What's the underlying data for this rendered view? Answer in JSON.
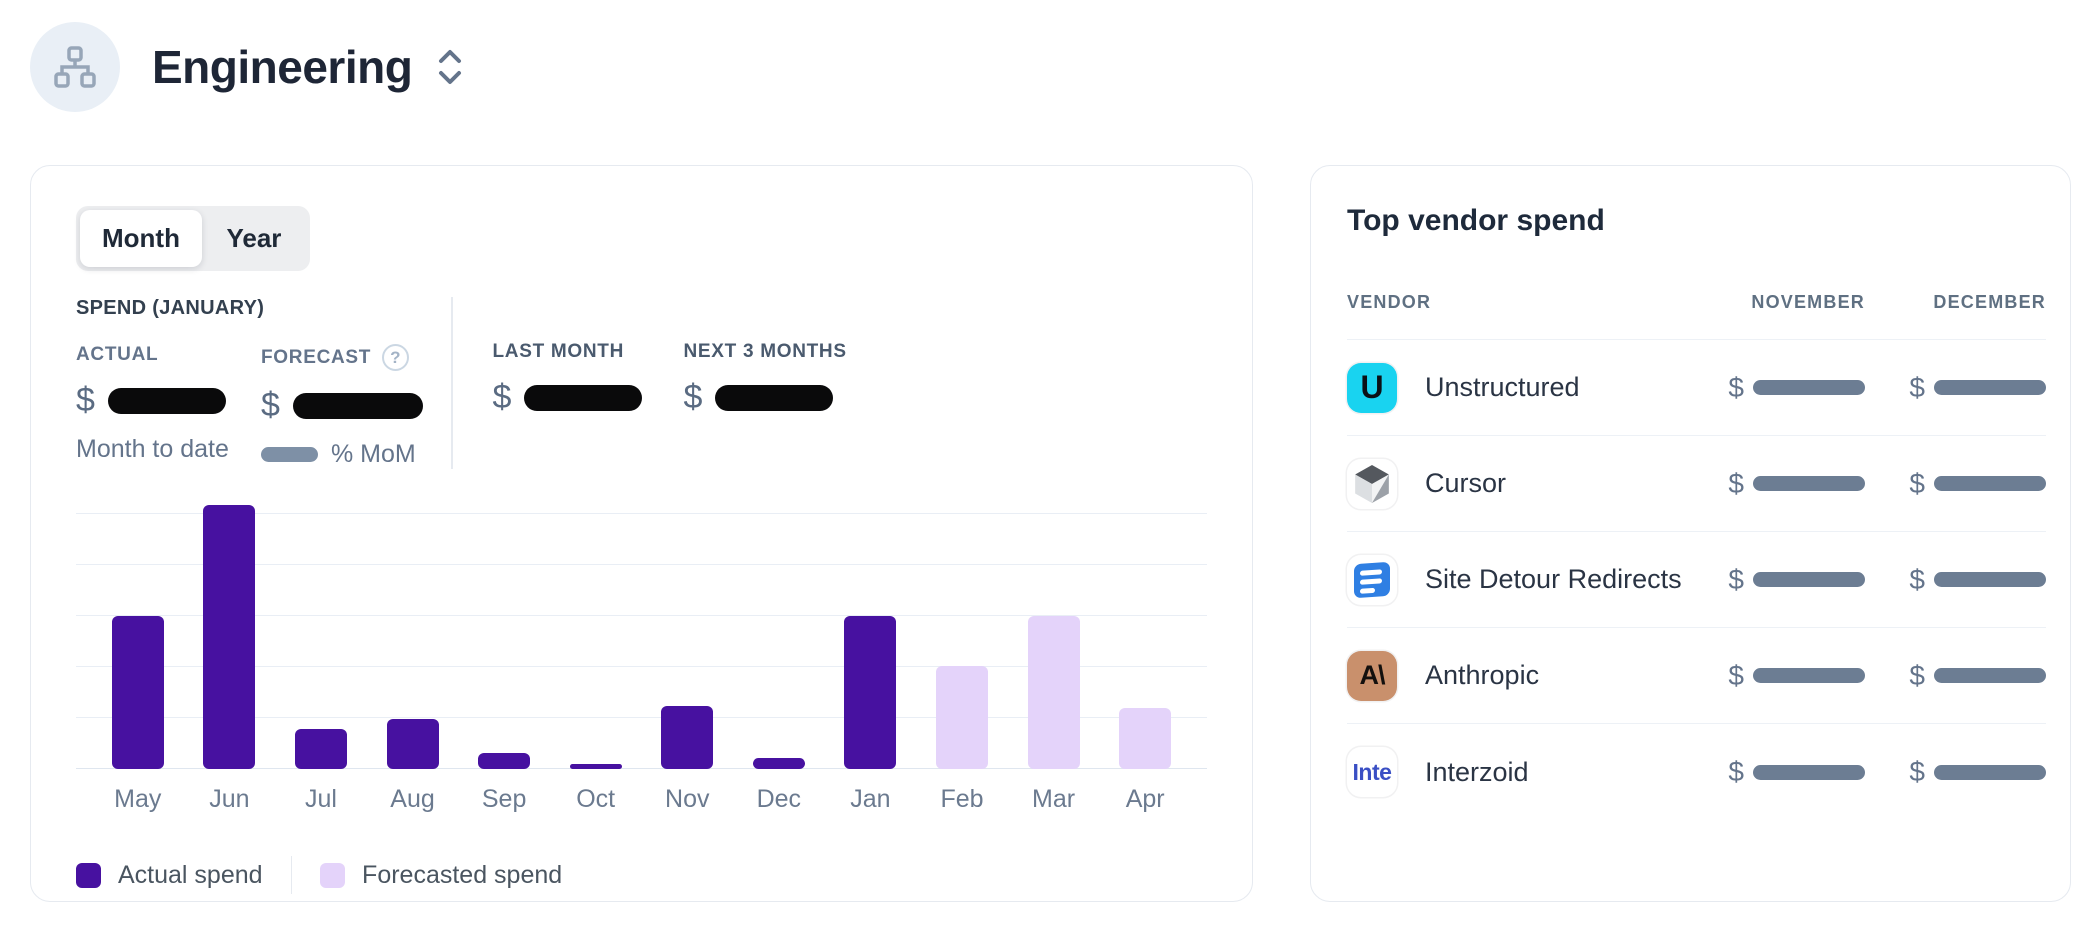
{
  "header": {
    "title": "Engineering",
    "avatar_icon": "org-chart-icon",
    "selector_icon": "chevron-up-down-icon"
  },
  "spend_card": {
    "toggle": {
      "options": [
        "Month",
        "Year"
      ],
      "selected": "Month"
    },
    "summary": {
      "title": "SPEND (JANUARY)",
      "actual": {
        "label": "ACTUAL",
        "currency": "$",
        "value": "[redacted]",
        "caption": "Month to date"
      },
      "forecast": {
        "label": "FORECAST",
        "currency": "$",
        "value": "[redacted]",
        "mom_value": "[redacted]",
        "caption_suffix": "% MoM",
        "help_icon": "question-circle-icon"
      },
      "last_month": {
        "label": "LAST MONTH",
        "currency": "$",
        "value": "[redacted]"
      },
      "next_3_months": {
        "label": "NEXT 3 MONTHS",
        "currency": "$",
        "value": "[redacted]"
      }
    },
    "chart_data": {
      "type": "bar",
      "title": "",
      "xlabel": "",
      "ylabel": "",
      "categories": [
        "May",
        "Jun",
        "Jul",
        "Aug",
        "Sep",
        "Oct",
        "Nov",
        "Dec",
        "Jan",
        "Feb",
        "Mar",
        "Apr"
      ],
      "series": [
        {
          "name": "Actual spend",
          "color": "#4711A0",
          "values_pct_of_max": [
            58,
            100,
            15,
            19,
            6,
            2,
            24,
            4,
            58,
            null,
            null,
            null
          ]
        },
        {
          "name": "Forecasted spend",
          "color": "#E4D3FA",
          "values_pct_of_max": [
            null,
            null,
            null,
            null,
            null,
            null,
            null,
            null,
            null,
            39,
            58,
            23
          ]
        }
      ],
      "y_axis_tick_labels_visible": false,
      "amounts_redacted": true,
      "gridline_count": 6,
      "legend_position": "bottom-left"
    },
    "legend": [
      {
        "label": "Actual spend",
        "color": "#4711A0"
      },
      {
        "label": "Forecasted spend",
        "color": "#E4D3FA"
      }
    ]
  },
  "vendor_card": {
    "title": "Top vendor spend",
    "columns": [
      "VENDOR",
      "NOVEMBER",
      "DECEMBER"
    ],
    "currency": "$",
    "values_redacted": true,
    "rows": [
      {
        "name": "Unstructured",
        "icon": "unstructured-logo-icon",
        "icon_text": "U",
        "icon_bg": "#19D3F0",
        "icon_fg": "#0B1016"
      },
      {
        "name": "Cursor",
        "icon": "cursor-logo-icon",
        "icon_text": "",
        "icon_bg": "#FFFFFF",
        "icon_fg": "#3A3E44"
      },
      {
        "name": "Site Detour Redirects",
        "icon": "site-detour-redirects-logo-icon",
        "icon_text": "",
        "icon_bg": "#FFFFFF",
        "icon_fg": "#2F7FE3"
      },
      {
        "name": "Anthropic",
        "icon": "anthropic-logo-icon",
        "icon_text": "A\\",
        "icon_bg": "#C9906C",
        "icon_fg": "#13100E"
      },
      {
        "name": "Interzoid",
        "icon": "interzoid-logo-icon",
        "icon_text": "Inte",
        "icon_bg": "#FFFFFF",
        "icon_fg": "#3A4FC4"
      }
    ]
  },
  "colors": {
    "actual_bar": "#4711A0",
    "forecast_bar": "#E4D3FA",
    "redaction_black": "#0A0A0B",
    "redaction_slate": "#6C7D93",
    "card_border": "#E6EAF0",
    "muted_label": "#64748B"
  }
}
